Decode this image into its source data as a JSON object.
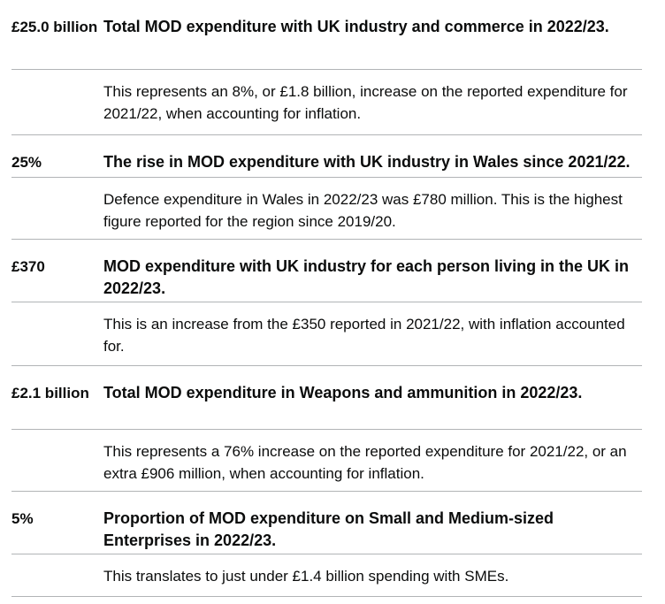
{
  "stats": [
    {
      "value": "£25.0 billion",
      "headline": "Total MOD expenditure with UK industry and commerce in 2022/23.",
      "detail": "This represents an 8%, or £1.8 billion, increase on the reported expenditure for 2021/22, when accounting for inflation."
    },
    {
      "value": "25%",
      "headline": "The rise in MOD expenditure with UK industry in Wales since 2021/22.",
      "detail": "Defence expenditure in Wales in 2022/23 was £780 million. This is the highest figure reported for the region since 2019/20."
    },
    {
      "value": "£370",
      "headline": "MOD expenditure with UK industry for each person living in the UK in 2022/23.",
      "detail": "This is an increase from the £350 reported in 2021/22, with inflation accounted for."
    },
    {
      "value": "£2.1 billion",
      "headline": "Total MOD expenditure in Weapons and ammunition in 2022/23.",
      "detail": "This represents a 76% increase on the reported expenditure for 2021/22, or an extra £906 million, when accounting for inflation."
    },
    {
      "value": "5%",
      "headline": "Proportion of MOD expenditure on Small and Medium-sized Enterprises in 2022/23.",
      "detail": "This translates to just under £1.4 billion spending with SMEs."
    }
  ]
}
